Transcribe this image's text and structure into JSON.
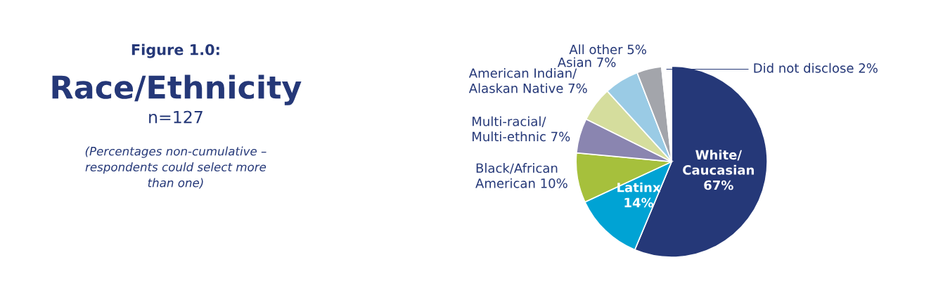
{
  "chart_data": {
    "type": "pie",
    "title": "Figure 1.0:",
    "subtitle": "Race/Ethnicity",
    "annotations": [
      "n=127",
      "(Percentages non-cumulative –\nrespondents could select more\nthan one)"
    ],
    "categories": [
      "White/\nCaucasian",
      "Latinx",
      "Black/African\nAmerican",
      "Multi-racial/\nMulti-ethnic",
      "American Indian/\nAlaskan Native",
      "Asian",
      "All other",
      "Did not disclose"
    ],
    "values": [
      67,
      14,
      10,
      7,
      7,
      7,
      5,
      2
    ],
    "colors": [
      "#253878",
      "#00a3d4",
      "#a6c03c",
      "#8a85b0",
      "#d5dd9d",
      "#9acbe5",
      "#a3a5ab",
      "#ffffff"
    ],
    "value_labels": [
      "67%",
      "14%",
      "10%",
      "7%",
      "7%",
      "7%",
      "5%",
      "2%"
    ]
  }
}
